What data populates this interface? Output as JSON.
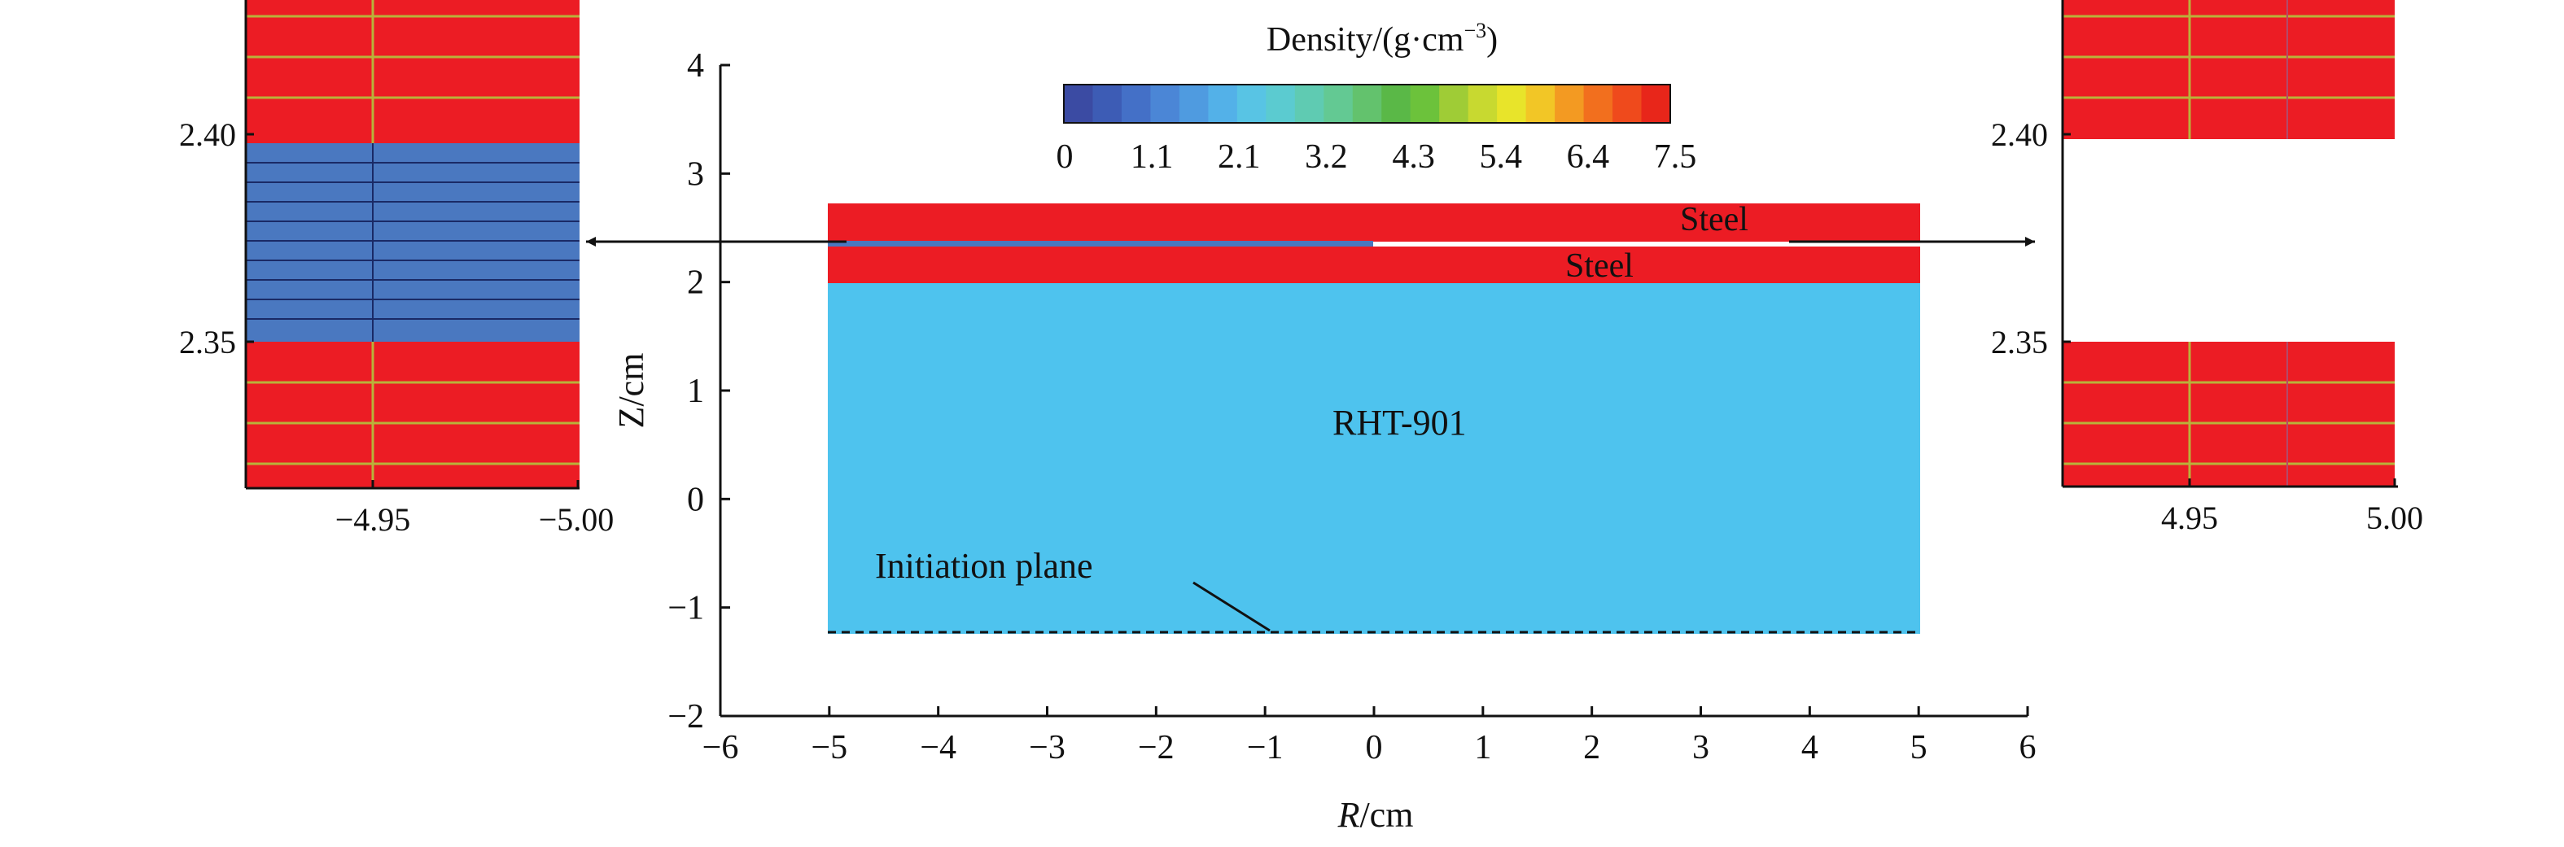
{
  "colorbar": {
    "title": "Density/(g·cm",
    "title_exponent": "−3",
    "title_close": ")",
    "tick_labels": [
      "0",
      "1.1",
      "2.1",
      "3.2",
      "4.3",
      "5.4",
      "6.4",
      "7.5"
    ],
    "colors": [
      "#3b4ba3",
      "#3d5cb5",
      "#4470c7",
      "#4b86d6",
      "#4f9be0",
      "#53b1e8",
      "#58c4e4",
      "#5bcbd0",
      "#5fcbb2",
      "#63c993",
      "#63c26d",
      "#5ab847",
      "#6cc23b",
      "#9fcc36",
      "#c8d930",
      "#e8e42a",
      "#f2c626",
      "#f39a22",
      "#f26f1e",
      "#ef4a1c",
      "#e8261a"
    ]
  },
  "main_plot": {
    "xlabel_italic": "R",
    "xlabel_rest": "/cm",
    "ylabel": "Z/cm",
    "x_tick_labels": [
      "−6",
      "−5",
      "−4",
      "−3",
      "−2",
      "−1",
      "0",
      "1",
      "2",
      "3",
      "4",
      "5",
      "6"
    ],
    "y_tick_labels": [
      "4",
      "3",
      "2",
      "1",
      "0",
      "−1",
      "−2"
    ],
    "labels": {
      "steel_top": "Steel",
      "steel_bottom": "Steel",
      "explosive": "RHT-901",
      "initiation": "Initiation plane"
    },
    "colors": {
      "steel": "#ec1c24",
      "explosive": "#4ec3ee",
      "gap_blue": "#4a78c0",
      "grid": "#b9b23a"
    }
  },
  "left_inset": {
    "y_tick_labels": [
      "2.40",
      "2.35"
    ],
    "x_tick_labels": [
      "−4.95",
      "−5.00"
    ]
  },
  "right_inset": {
    "y_tick_labels": [
      "2.40",
      "2.35"
    ],
    "x_tick_labels": [
      "4.95",
      "5.00"
    ]
  }
}
